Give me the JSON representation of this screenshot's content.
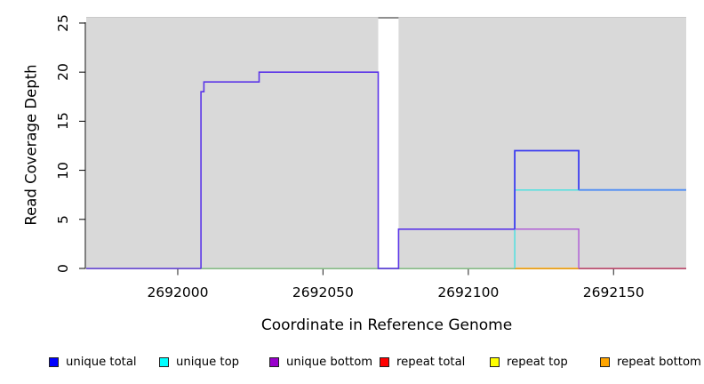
{
  "chart_data": {
    "type": "line",
    "title": "",
    "xlabel": "Coordinate in Reference Genome",
    "ylabel": "Read Coverage Depth",
    "xlim": [
      2691968.5,
      2692175.0
    ],
    "ylim": [
      0,
      25.63
    ],
    "grid": false,
    "plot_bg_color": "#d9d9d9",
    "x_ticks": [
      {
        "v": 2692000,
        "label": "2692000"
      },
      {
        "v": 2692050,
        "label": "2692050"
      },
      {
        "v": 2692100,
        "label": "2692100"
      },
      {
        "v": 2692150,
        "label": "2692150"
      }
    ],
    "y_ticks": [
      {
        "v": 0,
        "label": "0"
      },
      {
        "v": 5,
        "label": "5"
      },
      {
        "v": 10,
        "label": "10"
      },
      {
        "v": 15,
        "label": "15"
      },
      {
        "v": 20,
        "label": "20"
      },
      {
        "v": 25,
        "label": "25"
      }
    ],
    "gap_region": {
      "x0": 2692069,
      "x1": 2692076,
      "fill": "#ffffff",
      "cap_color": "#8f8f8f"
    },
    "series": [
      {
        "name": "unique total",
        "color": "#0000ff",
        "steps": [
          [
            2691968.5,
            0
          ],
          [
            2692008,
            0
          ],
          [
            2692008,
            18
          ],
          [
            2692009,
            18
          ],
          [
            2692009,
            19
          ],
          [
            2692028,
            19
          ],
          [
            2692028,
            20
          ],
          [
            2692069,
            20
          ],
          [
            2692069,
            0
          ],
          [
            2692076,
            0
          ],
          [
            2692076,
            4
          ],
          [
            2692116,
            4
          ],
          [
            2692116,
            12
          ],
          [
            2692138,
            12
          ],
          [
            2692138,
            8
          ],
          [
            2692175,
            8
          ]
        ]
      },
      {
        "name": "unique top",
        "color": "#00ffff",
        "steps": [
          [
            2691968.5,
            0
          ],
          [
            2692116,
            0
          ],
          [
            2692116,
            8
          ],
          [
            2692175,
            8
          ]
        ]
      },
      {
        "name": "unique bottom",
        "color": "#9900cc",
        "steps": [
          [
            2691968.5,
            0
          ],
          [
            2692008,
            0
          ],
          [
            2692008,
            18
          ],
          [
            2692009,
            18
          ],
          [
            2692009,
            19
          ],
          [
            2692028,
            19
          ],
          [
            2692028,
            20
          ],
          [
            2692069,
            20
          ],
          [
            2692069,
            0
          ],
          [
            2692076,
            0
          ],
          [
            2692076,
            4
          ],
          [
            2692138,
            4
          ],
          [
            2692138,
            0
          ],
          [
            2692175,
            0
          ]
        ]
      },
      {
        "name": "repeat total",
        "color": "#ff0000",
        "steps": [
          [
            2691968.5,
            0
          ],
          [
            2692175,
            0
          ]
        ]
      },
      {
        "name": "repeat top",
        "color": "#ffff00",
        "steps": [
          [
            2691968.5,
            0
          ],
          [
            2692175,
            0
          ]
        ]
      },
      {
        "name": "repeat bottom",
        "color": "#ffa500",
        "steps": [
          [
            2691968.5,
            0
          ],
          [
            2692175,
            0
          ]
        ]
      }
    ],
    "visible_segments": [
      {
        "name": "baseline-green-blend",
        "color": "#8fc98f",
        "w": 1.4,
        "pts": [
          [
            2692008,
            0
          ],
          [
            2692116,
            0
          ]
        ]
      },
      {
        "name": "baseline-orange",
        "color": "#ffa500",
        "w": 1.6,
        "pts": [
          [
            2692116,
            0
          ],
          [
            2692138,
            0
          ]
        ]
      },
      {
        "name": "baseline-crimson-blend",
        "color": "#c5496e",
        "w": 1.5,
        "pts": [
          [
            2692138,
            0
          ],
          [
            2692175,
            0
          ]
        ]
      },
      {
        "name": "unique-bottom-visible",
        "color": "#b05fd6",
        "w": 1.5,
        "pts": [
          [
            2692076,
            4
          ],
          [
            2692138,
            4
          ],
          [
            2692138,
            0
          ]
        ]
      },
      {
        "name": "unique-top-visible",
        "color": "#50e0e0",
        "w": 1.5,
        "pts": [
          [
            2692116,
            0
          ],
          [
            2692116,
            8
          ],
          [
            2692175,
            8
          ]
        ]
      },
      {
        "name": "baseline-left-violet",
        "color": "#6a48e0",
        "w": 1.6,
        "pts": [
          [
            2691968.5,
            0
          ],
          [
            2692008,
            0
          ]
        ]
      },
      {
        "name": "unique-total-left",
        "color": "#5b35e8",
        "w": 1.6,
        "pts": [
          [
            2692008,
            0
          ],
          [
            2692008,
            18
          ],
          [
            2692009,
            18
          ],
          [
            2692009,
            19
          ],
          [
            2692028,
            19
          ],
          [
            2692028,
            20
          ],
          [
            2692069,
            20
          ],
          [
            2692069,
            0
          ],
          [
            2692076,
            0
          ],
          [
            2692076,
            4
          ],
          [
            2692116,
            4
          ]
        ]
      },
      {
        "name": "unique-total-peak12",
        "color": "#3b3bf0",
        "w": 1.8,
        "pts": [
          [
            2692116,
            4
          ],
          [
            2692116,
            12
          ],
          [
            2692138,
            12
          ],
          [
            2692138,
            8
          ]
        ]
      },
      {
        "name": "unique-total-right8",
        "color": "#4d8cf4",
        "w": 1.8,
        "pts": [
          [
            2692138,
            8
          ],
          [
            2692175,
            8
          ]
        ]
      }
    ],
    "legend": [
      {
        "label": "unique total",
        "color": "#0000ff"
      },
      {
        "label": "unique top",
        "color": "#00ffff"
      },
      {
        "label": "unique bottom",
        "color": "#9900cc"
      },
      {
        "label": "repeat total",
        "color": "#ff0000"
      },
      {
        "label": "repeat top",
        "color": "#ffff00"
      },
      {
        "label": "repeat bottom",
        "color": "#ffa500"
      }
    ],
    "legend_position": "bottom"
  }
}
